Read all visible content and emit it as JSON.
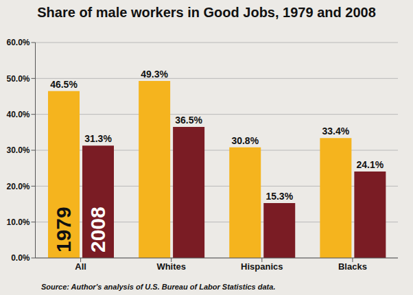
{
  "chart_data": {
    "type": "bar",
    "title": "Share of male workers in Good Jobs, 1979 and 2008",
    "annotations": [
      "Source: Author's analysis of U.S. Bureau of Labor Statistics data."
    ],
    "categories": [
      "All",
      "Whites",
      "Hispanics",
      "Blacks"
    ],
    "series": [
      {
        "name": "1979",
        "color": "#f5b41e",
        "values": [
          46.5,
          49.3,
          30.8,
          33.4
        ],
        "value_labels": [
          "46.5%",
          "49.3%",
          "30.8%",
          "33.4%"
        ]
      },
      {
        "name": "2008",
        "color": "#7a1c24",
        "values": [
          31.3,
          36.5,
          15.3,
          24.1
        ],
        "value_labels": [
          "31.3%",
          "36.5%",
          "15.3%",
          "24.1%"
        ]
      }
    ],
    "ylim": [
      0,
      60
    ],
    "yticks": [
      {
        "value": 0,
        "label": "0.0%"
      },
      {
        "value": 10,
        "label": "10.0%"
      },
      {
        "value": 20,
        "label": "20.0%"
      },
      {
        "value": 30,
        "label": "30.0%"
      },
      {
        "value": 40,
        "label": "40.0%"
      },
      {
        "value": 50,
        "label": "50.0%"
      },
      {
        "value": 60,
        "label": "60.0%"
      }
    ],
    "grid": true,
    "data_labels": true
  }
}
